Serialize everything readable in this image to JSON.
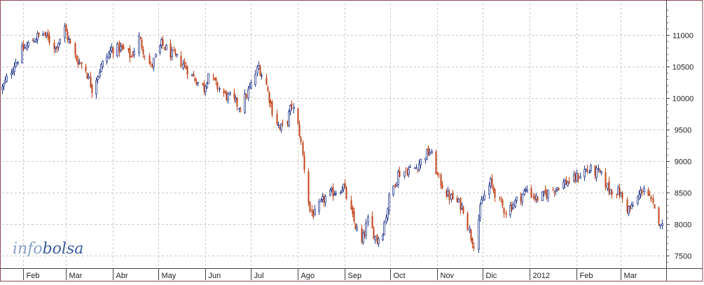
{
  "watermark": {
    "part1": "info",
    "part2": "bolsa"
  },
  "colors": {
    "up": "#2b3f8f",
    "down": "#c2431a",
    "frame": "#8e4a52",
    "grid": "#c8c8c8",
    "background": "#ffffff",
    "watermark_part1": "#8aa0c8",
    "watermark_part2": "#3b5a9e"
  },
  "chart_data": {
    "type": "candlestick",
    "title": "",
    "xlabel": "",
    "ylabel": "",
    "ylim": [
      7300,
      11500
    ],
    "y_ticks": [
      7500,
      8000,
      8500,
      9000,
      9500,
      10000,
      10500,
      11000
    ],
    "y_tick_labels": [
      "7500",
      "8000",
      "8500",
      "9000",
      "9500",
      "10000",
      "10500",
      "11000"
    ],
    "x_range": [
      "2011-01-18",
      "2012-03-31"
    ],
    "month_ticks": [
      {
        "date": "2011-02-01",
        "label": "Feb"
      },
      {
        "date": "2011-03-01",
        "label": "Mar"
      },
      {
        "date": "2011-04-01",
        "label": "Abr"
      },
      {
        "date": "2011-05-01",
        "label": "May"
      },
      {
        "date": "2011-06-01",
        "label": "Jun"
      },
      {
        "date": "2011-07-01",
        "label": "Jul"
      },
      {
        "date": "2011-08-01",
        "label": "Ago"
      },
      {
        "date": "2011-09-01",
        "label": "Sep"
      },
      {
        "date": "2011-10-01",
        "label": "Oct"
      },
      {
        "date": "2011-11-01",
        "label": "Nov"
      },
      {
        "date": "2011-12-01",
        "label": "Dic"
      },
      {
        "date": "2012-01-01",
        "label": "2012"
      },
      {
        "date": "2012-02-01",
        "label": "Feb"
      },
      {
        "date": "2012-03-01",
        "label": "Mar"
      }
    ],
    "grid": true,
    "close_path": [
      [
        "2011-01-18",
        10150
      ],
      [
        "2011-01-24",
        10450
      ],
      [
        "2011-01-31",
        10750
      ],
      [
        "2011-02-08",
        10950
      ],
      [
        "2011-02-14",
        11020
      ],
      [
        "2011-02-22",
        10800
      ],
      [
        "2011-02-28",
        11100
      ],
      [
        "2011-03-07",
        10650
      ],
      [
        "2011-03-14",
        10450
      ],
      [
        "2011-03-18",
        10150
      ],
      [
        "2011-03-24",
        10500
      ],
      [
        "2011-03-31",
        10780
      ],
      [
        "2011-04-07",
        10780
      ],
      [
        "2011-04-13",
        10650
      ],
      [
        "2011-04-18",
        10950
      ],
      [
        "2011-04-26",
        10480
      ],
      [
        "2011-05-03",
        10850
      ],
      [
        "2011-05-10",
        10680
      ],
      [
        "2011-05-17",
        10550
      ],
      [
        "2011-05-23",
        10350
      ],
      [
        "2011-05-31",
        10150
      ],
      [
        "2011-06-03",
        10400
      ],
      [
        "2011-06-08",
        10200
      ],
      [
        "2011-06-14",
        10050
      ],
      [
        "2011-06-20",
        9950
      ],
      [
        "2011-06-24",
        9850
      ],
      [
        "2011-06-30",
        10150
      ],
      [
        "2011-07-06",
        10500
      ],
      [
        "2011-07-11",
        10200
      ],
      [
        "2011-07-15",
        9800
      ],
      [
        "2011-07-20",
        9500
      ],
      [
        "2011-07-25",
        9650
      ],
      [
        "2011-07-28",
        9900
      ],
      [
        "2011-08-02",
        9450
      ],
      [
        "2011-08-05",
        8900
      ],
      [
        "2011-08-09",
        8200
      ],
      [
        "2011-08-12",
        8150
      ],
      [
        "2011-08-18",
        8400
      ],
      [
        "2011-08-24",
        8500
      ],
      [
        "2011-08-31",
        8600
      ],
      [
        "2011-09-06",
        8100
      ],
      [
        "2011-09-12",
        7700
      ],
      [
        "2011-09-16",
        8050
      ],
      [
        "2011-09-22",
        7750
      ],
      [
        "2011-09-26",
        7900
      ],
      [
        "2011-09-30",
        8400
      ],
      [
        "2011-10-06",
        8800
      ],
      [
        "2011-10-12",
        8850
      ],
      [
        "2011-10-18",
        8900
      ],
      [
        "2011-10-24",
        9100
      ],
      [
        "2011-10-27",
        9150
      ],
      [
        "2011-11-02",
        8700
      ],
      [
        "2011-11-08",
        8450
      ],
      [
        "2011-11-14",
        8350
      ],
      [
        "2011-11-18",
        8250
      ],
      [
        "2011-11-23",
        7800
      ],
      [
        "2011-11-25",
        7700
      ],
      [
        "2011-11-30",
        8350
      ],
      [
        "2011-12-06",
        8650
      ],
      [
        "2011-12-12",
        8350
      ],
      [
        "2011-12-16",
        8200
      ],
      [
        "2011-12-22",
        8350
      ],
      [
        "2011-12-30",
        8550
      ],
      [
        "2012-01-05",
        8400
      ],
      [
        "2012-01-10",
        8450
      ],
      [
        "2012-01-16",
        8550
      ],
      [
        "2012-01-23",
        8650
      ],
      [
        "2012-01-30",
        8700
      ],
      [
        "2012-02-06",
        8850
      ],
      [
        "2012-02-10",
        8850
      ],
      [
        "2012-02-16",
        8800
      ],
      [
        "2012-02-22",
        8550
      ],
      [
        "2012-02-29",
        8500
      ],
      [
        "2012-03-05",
        8250
      ],
      [
        "2012-03-08",
        8250
      ],
      [
        "2012-03-13",
        8450
      ],
      [
        "2012-03-16",
        8600
      ],
      [
        "2012-03-20",
        8400
      ],
      [
        "2012-03-23",
        8200
      ],
      [
        "2012-03-27",
        8050
      ],
      [
        "2012-03-28",
        7950
      ]
    ]
  }
}
